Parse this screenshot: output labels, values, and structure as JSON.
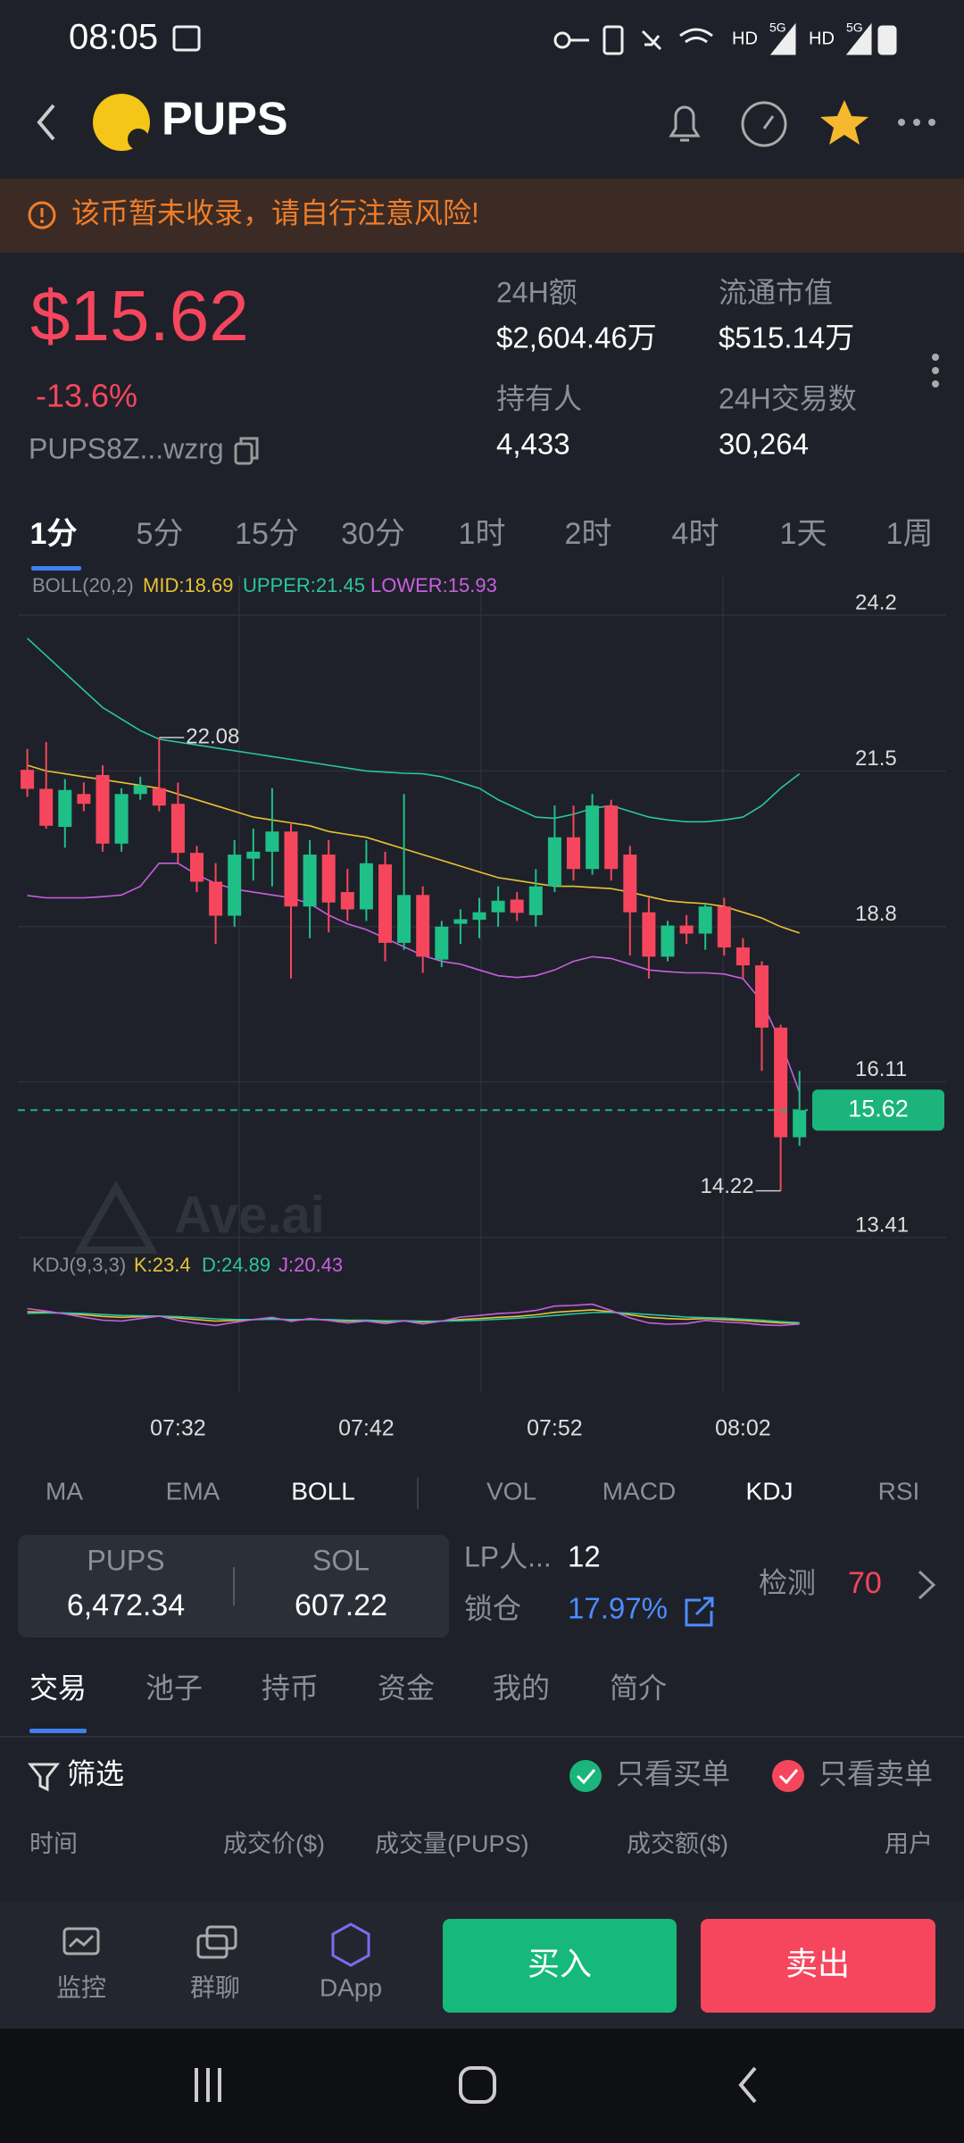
{
  "status_bar": {
    "time": "08:05",
    "network": [
      "HD",
      "5G",
      "HD",
      "5G"
    ]
  },
  "header": {
    "symbol": "PUPS"
  },
  "warning": "该币暂未收录，请自行注意风险!",
  "token": {
    "price": "$15.62",
    "change": "-13.6%",
    "address": "PUPS8Z...wzrg",
    "stats": [
      {
        "label": "24H额",
        "value": "$2,604.46万"
      },
      {
        "label": "流通市值",
        "value": "$515.14万"
      },
      {
        "label": "持有人",
        "value": "4,433"
      },
      {
        "label": "24H交易数",
        "value": "30,264"
      }
    ]
  },
  "timeframes": {
    "items": [
      "1分",
      "5分",
      "15分",
      "30分",
      "1时",
      "2时",
      "4时",
      "1天",
      "1周"
    ],
    "active": 0
  },
  "chart_data": {
    "type": "candlestick",
    "categories": [
      null,
      null,
      null,
      null,
      null,
      null,
      null,
      null,
      "07:32",
      null,
      null,
      null,
      null,
      null,
      null,
      null,
      null,
      null,
      "07:42",
      null,
      null,
      null,
      null,
      null,
      null,
      null,
      null,
      null,
      "07:52",
      null,
      null,
      null,
      null,
      null,
      null,
      null,
      null,
      null,
      "08:02",
      null,
      null,
      null
    ],
    "open": [
      21.52,
      21.19,
      20.53,
      21.1,
      21.43,
      20.24,
      21.1,
      21.2,
      20.93,
      20.08,
      19.58,
      18.99,
      19.98,
      20.1,
      20.45,
      19.15,
      20.05,
      19.4,
      19.1,
      19.88,
      18.52,
      19.35,
      18.23,
      18.85,
      18.92,
      19.05,
      19.27,
      19.0,
      19.5,
      20.35,
      19.8,
      20.9,
      20.05,
      19.05,
      18.28,
      18.82,
      18.68,
      19.15,
      18.44,
      18.13,
      17.05,
      15.15
    ],
    "high": [
      21.88,
      22.0,
      21.36,
      21.3,
      21.6,
      21.2,
      21.4,
      22.08,
      21.3,
      20.2,
      19.9,
      20.3,
      20.5,
      21.2,
      20.6,
      20.3,
      20.3,
      19.8,
      20.3,
      20.1,
      21.1,
      19.5,
      18.9,
      19.1,
      19.3,
      19.5,
      19.4,
      19.8,
      20.9,
      20.9,
      21.1,
      21.0,
      20.2,
      19.3,
      18.9,
      19.0,
      19.2,
      19.3,
      18.6,
      18.2,
      17.1,
      16.3
    ],
    "low": [
      21.05,
      20.5,
      20.17,
      20.8,
      20.1,
      20.1,
      21.0,
      20.8,
      19.9,
      19.4,
      18.5,
      18.8,
      19.6,
      19.5,
      17.9,
      18.6,
      18.7,
      18.9,
      18.9,
      18.2,
      18.4,
      18.0,
      18.1,
      18.5,
      18.6,
      18.8,
      18.9,
      18.8,
      19.4,
      19.6,
      19.7,
      19.6,
      18.3,
      17.9,
      18.2,
      18.5,
      18.4,
      18.3,
      17.9,
      16.3,
      14.22,
      15.0
    ],
    "close": [
      21.19,
      20.55,
      21.17,
      20.93,
      20.24,
      21.1,
      21.25,
      20.9,
      20.08,
      19.58,
      18.99,
      20.05,
      20.1,
      20.45,
      19.15,
      20.05,
      19.22,
      19.1,
      19.9,
      18.52,
      19.35,
      18.28,
      18.8,
      18.93,
      19.05,
      19.25,
      19.04,
      19.5,
      20.35,
      19.8,
      20.9,
      19.8,
      19.05,
      18.28,
      18.82,
      18.68,
      19.15,
      18.44,
      18.13,
      17.05,
      15.15,
      15.62
    ],
    "up_color": "#1fbf88",
    "down_color": "#f6465d",
    "ylim": [
      13.41,
      24.2
    ],
    "yticks": [
      24.2,
      21.5,
      18.8,
      16.11,
      13.41
    ],
    "grid": true,
    "boll_legend": [
      "BOLL(20,2)",
      "MID:18.69",
      "UPPER:21.45",
      "LOWER:15.93"
    ],
    "boll": [
      {
        "color": "#e9c235",
        "values": [
          21.6,
          21.5,
          21.45,
          21.4,
          21.35,
          21.3,
          21.25,
          21.2,
          21.1,
          21.0,
          20.9,
          20.8,
          20.7,
          20.65,
          20.6,
          20.55,
          20.45,
          20.4,
          20.35,
          20.25,
          20.15,
          20.05,
          19.95,
          19.85,
          19.75,
          19.65,
          19.6,
          19.55,
          19.5,
          19.5,
          19.48,
          19.46,
          19.4,
          19.32,
          19.25,
          19.22,
          19.2,
          19.15,
          19.05,
          18.95,
          18.8,
          18.69
        ]
      },
      {
        "color": "#2bc5a0",
        "values": [
          23.8,
          23.5,
          23.2,
          22.9,
          22.6,
          22.4,
          22.2,
          22.05,
          22.0,
          21.95,
          21.9,
          21.85,
          21.8,
          21.75,
          21.7,
          21.65,
          21.6,
          21.55,
          21.5,
          21.48,
          21.46,
          21.45,
          21.4,
          21.3,
          21.2,
          21.0,
          20.85,
          20.7,
          20.68,
          20.75,
          20.85,
          20.9,
          20.8,
          20.7,
          20.65,
          20.62,
          20.62,
          20.65,
          20.7,
          20.9,
          21.2,
          21.45
        ]
      },
      {
        "color": "#c95fe0",
        "values": [
          19.34,
          19.3,
          19.3,
          19.3,
          19.32,
          19.35,
          19.5,
          19.9,
          19.9,
          19.7,
          19.55,
          19.45,
          19.4,
          19.35,
          19.3,
          19.2,
          19.0,
          18.85,
          18.75,
          18.6,
          18.45,
          18.3,
          18.2,
          18.15,
          18.05,
          17.95,
          17.92,
          17.95,
          18.05,
          18.2,
          18.28,
          18.25,
          18.15,
          18.05,
          18.02,
          18.0,
          18.0,
          17.98,
          17.9,
          17.5,
          16.8,
          15.93
        ]
      }
    ],
    "kdj": {
      "legend": [
        "KDJ(9,3,3)",
        "K:23.4",
        "D:24.89",
        "J:20.43"
      ],
      "ylim": [
        -200,
        200
      ],
      "lines": [
        {
          "color": "#e9c235",
          "values": [
            60,
            58,
            55,
            50,
            45,
            42,
            44,
            46,
            40,
            35,
            30,
            32,
            35,
            38,
            33,
            36,
            34,
            30,
            32,
            28,
            31,
            27,
            30,
            35,
            38,
            42,
            45,
            50,
            58,
            62,
            66,
            60,
            50,
            42,
            38,
            36,
            38,
            35,
            32,
            28,
            24,
            23.4
          ]
        },
        {
          "color": "#2bc5a0",
          "values": [
            55,
            56,
            56,
            54,
            51,
            48,
            47,
            46,
            44,
            41,
            37,
            35,
            35,
            36,
            35,
            35,
            35,
            33,
            33,
            31,
            31,
            30,
            30,
            31,
            33,
            36,
            39,
            43,
            48,
            53,
            57,
            58,
            55,
            51,
            47,
            43,
            41,
            39,
            36,
            33,
            28,
            24.89
          ]
        },
        {
          "color": "#c95fe0",
          "values": [
            70,
            62,
            53,
            42,
            33,
            30,
            38,
            46,
            32,
            23,
            16,
            26,
            35,
            42,
            29,
            38,
            32,
            24,
            30,
            22,
            31,
            21,
            30,
            43,
            48,
            54,
            57,
            64,
            78,
            80,
            84,
            64,
            40,
            24,
            20,
            22,
            32,
            27,
            24,
            18,
            16,
            20.43
          ]
        }
      ]
    }
  },
  "watermark": "Ave.ai",
  "indicator_tabs": {
    "main": [
      "MA",
      "EMA",
      "BOLL"
    ],
    "sub": [
      "VOL",
      "MACD",
      "KDJ",
      "RSI"
    ],
    "active_main": 2,
    "active_sub": 2
  },
  "pair": [
    {
      "symbol": "PUPS",
      "amount": "6,472.34"
    },
    {
      "symbol": "SOL",
      "amount": "607.22"
    }
  ],
  "lp": {
    "label": "LP人...",
    "count": "12",
    "lock_label": "锁仓",
    "lock": "17.97%"
  },
  "check": {
    "label": "检测",
    "score": "70"
  },
  "tabs": {
    "items": [
      "交易",
      "池子",
      "持币",
      "资金",
      "我的",
      "简介"
    ],
    "active": 0
  },
  "filter": {
    "label": "筛选",
    "buy_only": "只看买单",
    "sell_only": "只看卖单"
  },
  "columns": [
    "时间",
    "成交价($)",
    "成交量(PUPS)",
    "成交额($)",
    "用户"
  ],
  "bottom_bar": {
    "items": [
      "监控",
      "群聊",
      "DApp"
    ],
    "buy": "买入",
    "sell": "卖出"
  }
}
